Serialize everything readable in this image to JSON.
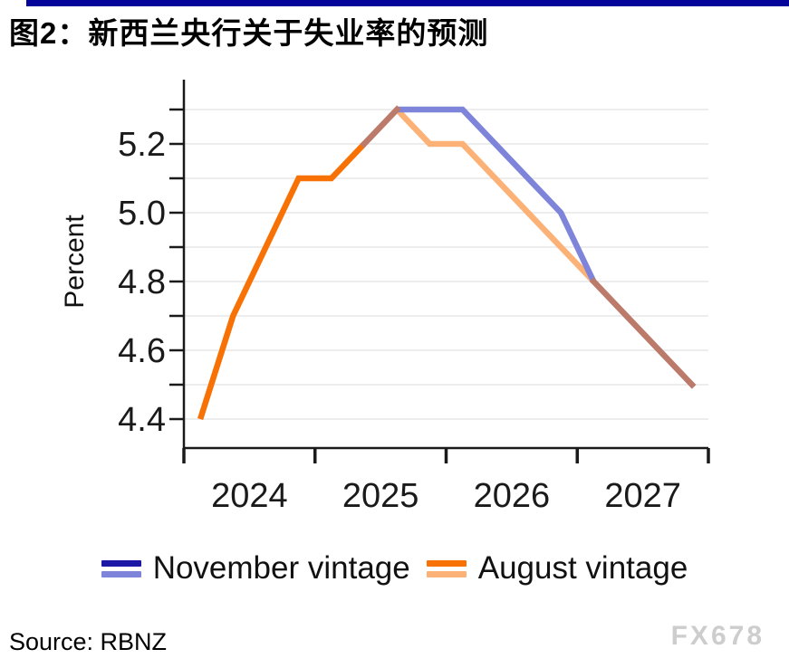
{
  "header": {
    "title": "图2：新西兰央行关于失业率的预测"
  },
  "footer": {
    "source": "Source: RBNZ",
    "watermark": "FX678"
  },
  "colors": {
    "accent_bar": "#04049a",
    "grid": "#ededed",
    "axis": "#1a1a1a",
    "watermark": "#cdcdcd"
  },
  "chart_data": {
    "type": "line",
    "title": "",
    "xlabel": "",
    "ylabel": "Percent",
    "x_unit": "quarter",
    "grid": true,
    "legend_position": "bottom",
    "ylim": [
      4.4,
      5.3
    ],
    "categories": [
      "2024 Q1",
      "2024 Q2",
      "2024 Q3",
      "2024 Q4",
      "2025 Q1",
      "2025 Q2",
      "2025 Q3",
      "2025 Q4",
      "2026 Q1",
      "2026 Q2",
      "2026 Q3",
      "2026 Q4",
      "2027 Q1",
      "2027 Q2",
      "2027 Q3",
      "2027 Q4"
    ],
    "xtick_labels": [
      "2024",
      "2025",
      "2026",
      "2027"
    ],
    "ytick_values": [
      4.4,
      4.5,
      4.6,
      4.7,
      4.8,
      4.9,
      5.0,
      5.1,
      5.2,
      5.3
    ],
    "ytick_label_values": [
      4.4,
      4.6,
      4.8,
      5.0,
      5.2
    ],
    "series": [
      {
        "name": "November vintage",
        "history_color": "#1c17a5",
        "forecast_color": "#7d84d9",
        "values": [
          null,
          null,
          null,
          null,
          null,
          5.2,
          5.3,
          5.3,
          5.3,
          5.2,
          5.1,
          5.0,
          4.8,
          4.7,
          4.6,
          4.5
        ]
      },
      {
        "name": "August vintage",
        "history_color": "#f87104",
        "forecast_color": "#fcb277",
        "history_through_index": 5,
        "values": [
          4.4,
          4.7,
          4.9,
          5.1,
          5.1,
          5.2,
          5.3,
          5.2,
          5.2,
          5.1,
          5.0,
          4.9,
          4.8,
          4.7,
          4.6,
          4.5
        ]
      }
    ],
    "overlap_color": "#bc7a6b"
  }
}
